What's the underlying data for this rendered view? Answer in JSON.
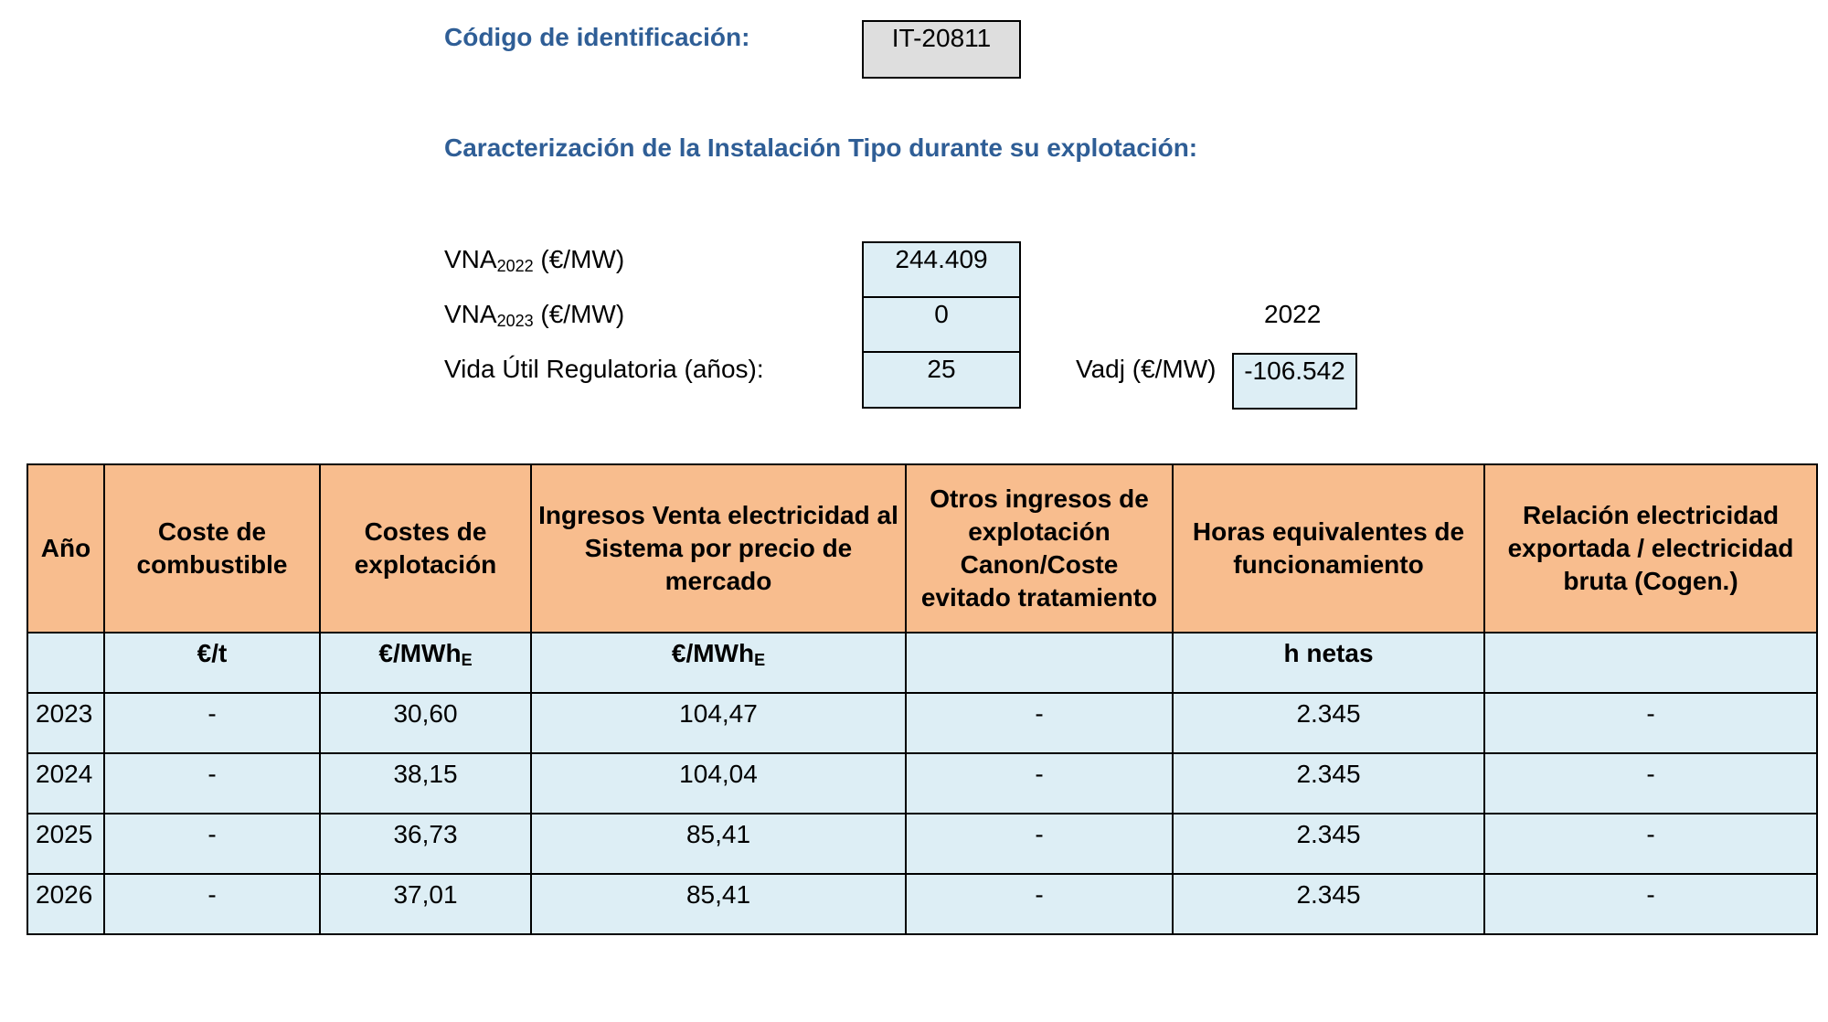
{
  "header": {
    "code_label": "Código de identificación:",
    "code_value": "IT-20811",
    "section_title": "Caracterización de la Instalación Tipo durante su explotación:"
  },
  "params": {
    "vna1_prefix": "VNA",
    "vna1_sub": "2022",
    "vna1_unit": "(€/MW)",
    "vna1_value": "244.409",
    "vna2_prefix": "VNA",
    "vna2_sub": "2023",
    "vna2_unit": "(€/MW)",
    "vna2_value": "0",
    "year_label": "2022",
    "vida_label": "Vida Útil Regulatoria (años):",
    "vida_value": "25",
    "vadj_label": "Vadj (€/MW)",
    "vadj_value": "-106.542"
  },
  "table": {
    "headers": [
      "Año",
      "Coste de combustible",
      "Costes de explotación",
      "Ingresos Venta electricidad al Sistema por precio de mercado",
      "Otros ingresos de explotación Canon/Coste evitado tratamiento",
      "Horas equivalentes de funcionamiento",
      "Relación electricidad exportada / electricidad bruta (Cogen.)"
    ],
    "units": {
      "coste_combustible": "€/t",
      "costes_explotacion": "€/MWh",
      "costes_explotacion_sub": "E",
      "ingresos": "€/MWh",
      "ingresos_sub": "E",
      "horas": "h netas"
    },
    "rows": [
      [
        "2023",
        "-",
        "30,60",
        "104,47",
        "-",
        "2.345",
        "-"
      ],
      [
        "2024",
        "-",
        "38,15",
        "104,04",
        "-",
        "2.345",
        "-"
      ],
      [
        "2025",
        "-",
        "36,73",
        "85,41",
        "-",
        "2.345",
        "-"
      ],
      [
        "2026",
        "-",
        "37,01",
        "85,41",
        "-",
        "2.345",
        "-"
      ]
    ]
  }
}
